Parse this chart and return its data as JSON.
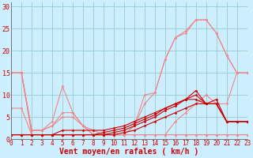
{
  "background_color": "#cceeff",
  "grid_color": "#99cccc",
  "xlabel": "Vent moyen/en rafales ( km/h )",
  "ylim": [
    0,
    31
  ],
  "xlim": [
    0,
    23
  ],
  "yticks": [
    0,
    5,
    10,
    15,
    20,
    25,
    30
  ],
  "series": [
    {
      "x": [
        0,
        1,
        2,
        3,
        4,
        5,
        6,
        7,
        8,
        9,
        10,
        11,
        12,
        13,
        14,
        15,
        16,
        17,
        18,
        19,
        20,
        21,
        22,
        23
      ],
      "y": [
        15,
        15,
        1,
        1,
        1,
        1,
        1,
        1,
        1,
        1,
        1,
        1,
        1,
        1,
        1,
        1,
        1,
        1,
        1,
        1,
        1,
        1,
        1,
        1
      ],
      "color": "#f08888",
      "marker": "D",
      "markersize": 1.5,
      "linewidth": 0.8
    },
    {
      "x": [
        0,
        1,
        2,
        3,
        4,
        5,
        6,
        7,
        8,
        9,
        10,
        11,
        12,
        13,
        14,
        15,
        16,
        17,
        18,
        19,
        20,
        21,
        22,
        23
      ],
      "y": [
        7,
        7,
        1,
        1,
        1,
        1,
        1,
        1,
        1,
        1,
        1,
        1,
        1,
        1,
        1,
        1,
        1,
        1,
        1,
        1,
        1,
        1,
        1,
        1
      ],
      "color": "#f08888",
      "marker": "D",
      "markersize": 1.5,
      "linewidth": 0.8
    },
    {
      "x": [
        0,
        1,
        2,
        3,
        4,
        5,
        6,
        7,
        8,
        9,
        10,
        11,
        12,
        13,
        14,
        15,
        16,
        17,
        18,
        19,
        20,
        21,
        22,
        23
      ],
      "y": [
        15,
        15,
        2,
        2,
        3,
        5,
        5,
        3,
        1,
        1,
        1,
        1,
        1,
        1,
        1,
        1,
        4,
        6,
        8,
        10,
        8,
        8,
        15,
        15
      ],
      "color": "#f08888",
      "marker": "D",
      "markersize": 1.5,
      "linewidth": 0.8
    },
    {
      "x": [
        0,
        1,
        2,
        3,
        4,
        5,
        6,
        7,
        8,
        9,
        10,
        11,
        12,
        13,
        14,
        15,
        16,
        17,
        18,
        19,
        20,
        21,
        22,
        23
      ],
      "y": [
        15,
        15,
        2,
        2,
        3,
        6,
        6,
        3,
        2,
        1,
        1,
        1,
        3,
        8,
        10.5,
        18,
        23,
        24,
        27,
        27,
        24,
        19,
        15,
        15
      ],
      "color": "#f08888",
      "marker": "D",
      "markersize": 1.5,
      "linewidth": 0.8
    },
    {
      "x": [
        0,
        1,
        2,
        3,
        4,
        5,
        6,
        7,
        8,
        9,
        10,
        11,
        12,
        13,
        14,
        15,
        16,
        17,
        18,
        19,
        20,
        21,
        22,
        23
      ],
      "y": [
        15,
        15,
        2,
        2,
        4,
        12,
        6,
        3,
        1,
        1,
        1,
        1,
        3,
        10,
        10.5,
        18,
        23,
        24.5,
        27,
        27,
        24,
        19,
        15,
        15
      ],
      "color": "#f08888",
      "marker": "D",
      "markersize": 1.5,
      "linewidth": 0.8
    },
    {
      "x": [
        0,
        1,
        2,
        3,
        4,
        5,
        6,
        7,
        8,
        9,
        10,
        11,
        12,
        13,
        14,
        15,
        16,
        17,
        18,
        19,
        20,
        21,
        22,
        23
      ],
      "y": [
        1,
        1,
        1,
        1,
        1,
        1,
        1,
        1,
        1,
        1,
        1,
        1.5,
        2,
        3,
        4,
        5,
        6,
        7,
        8,
        8,
        8,
        4,
        4,
        4
      ],
      "color": "#cc0000",
      "marker": "D",
      "markersize": 1.5,
      "linewidth": 0.8
    },
    {
      "x": [
        0,
        1,
        2,
        3,
        4,
        5,
        6,
        7,
        8,
        9,
        10,
        11,
        12,
        13,
        14,
        15,
        16,
        17,
        18,
        19,
        20,
        21,
        22,
        23
      ],
      "y": [
        1,
        1,
        1,
        1,
        1,
        1,
        1,
        1,
        1,
        1,
        1.5,
        2,
        3,
        4,
        5,
        6.5,
        7.5,
        9,
        11,
        8,
        9,
        4,
        4,
        4
      ],
      "color": "#cc0000",
      "marker": "D",
      "markersize": 1.5,
      "linewidth": 0.8
    },
    {
      "x": [
        0,
        1,
        2,
        3,
        4,
        5,
        6,
        7,
        8,
        9,
        10,
        11,
        12,
        13,
        14,
        15,
        16,
        17,
        18,
        19,
        20,
        21,
        22,
        23
      ],
      "y": [
        1,
        1,
        1,
        1,
        1,
        1,
        1,
        1,
        1,
        1.5,
        2,
        2.5,
        3.5,
        4.5,
        5.5,
        7,
        8,
        9,
        10,
        8,
        8,
        4,
        4,
        4
      ],
      "color": "#cc0000",
      "marker": "D",
      "markersize": 1.5,
      "linewidth": 0.8
    },
    {
      "x": [
        0,
        1,
        2,
        3,
        4,
        5,
        6,
        7,
        8,
        9,
        10,
        11,
        12,
        13,
        14,
        15,
        16,
        17,
        18,
        19,
        20,
        21,
        22,
        23
      ],
      "y": [
        1,
        1,
        1,
        1,
        1,
        2,
        2,
        2,
        2,
        2,
        2.5,
        3,
        4,
        5,
        6,
        7,
        8,
        9,
        9,
        8,
        8,
        4,
        4,
        4
      ],
      "color": "#cc0000",
      "marker": "D",
      "markersize": 1.5,
      "linewidth": 0.8
    }
  ],
  "tick_label_color": "#cc0000",
  "tick_label_fontsize": 5.5,
  "xlabel_fontsize": 7,
  "xlabel_color": "#cc0000",
  "ytick_label_color": "#cc0000",
  "ytick_label_fontsize": 6
}
